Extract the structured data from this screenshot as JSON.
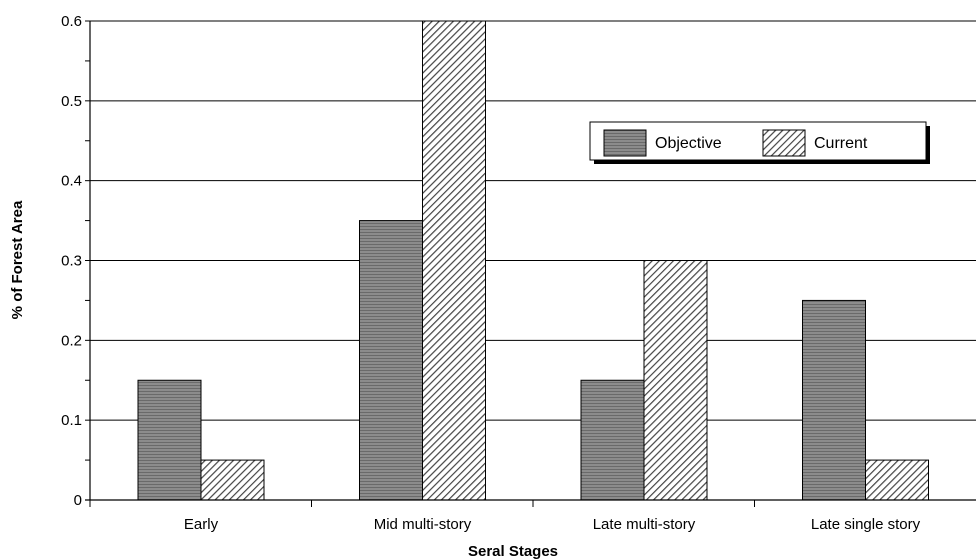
{
  "chart_data": {
    "type": "bar",
    "title": "",
    "xlabel": "Seral Stages",
    "ylabel": "% of Forest Area",
    "categories": [
      "Early",
      "Mid multi-story",
      "Late multi-story",
      "Late single story"
    ],
    "series": [
      {
        "name": "Objective",
        "values": [
          0.15,
          0.35,
          0.15,
          0.25
        ]
      },
      {
        "name": "Current",
        "values": [
          0.05,
          0.6,
          0.3,
          0.05
        ]
      }
    ],
    "ylim": [
      0,
      0.6
    ],
    "yticks": [
      "0",
      "0.1",
      "0.2",
      "0.3",
      "0.4",
      "0.5",
      "0.6"
    ],
    "grid": true,
    "legend": "upper-right",
    "colors": {
      "objective": "#8c8c8c",
      "current": "#ffffff",
      "axis": "#000000"
    }
  }
}
